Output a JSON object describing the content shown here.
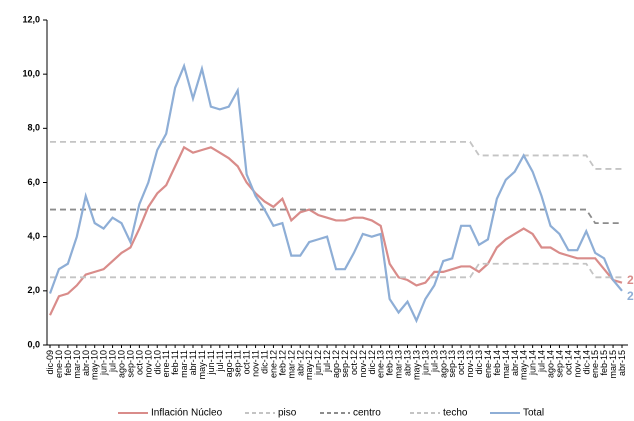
{
  "chart_data": {
    "type": "line",
    "categories": [
      "dic-09",
      "ene-10",
      "feb-10",
      "mar-10",
      "abr-10",
      "may-10",
      "jun-10",
      "jul-10",
      "ago-10",
      "sep-10",
      "oct-10",
      "nov-10",
      "dic-10",
      "ene-11",
      "feb-11",
      "mar-11",
      "abr-11",
      "may-11",
      "jun-11",
      "jul-11",
      "ago-11",
      "sep-11",
      "oct-11",
      "nov-11",
      "dic-11",
      "ene-12",
      "feb-12",
      "mar-12",
      "abr-12",
      "may-12",
      "jun-12",
      "jul-12",
      "ago-12",
      "sep-12",
      "oct-12",
      "nov-12",
      "dic-12",
      "ene-13",
      "feb-13",
      "mar-13",
      "abr-13",
      "may-13",
      "jun-13",
      "jul-13",
      "ago-13",
      "sep-13",
      "oct-13",
      "nov-13",
      "dic-13",
      "ene-14",
      "feb-14",
      "mar-14",
      "abr-14",
      "may-14",
      "jun-14",
      "jul-14",
      "ago-14",
      "sep-14",
      "oct-14",
      "nov-14",
      "dic-14",
      "ene-15",
      "feb-15",
      "mar-15",
      "abr-15"
    ],
    "series": [
      {
        "name": "Inflación Núcleo",
        "color": "#d98c8a",
        "dash": false,
        "values": [
          1.1,
          1.8,
          1.9,
          2.2,
          2.6,
          2.7,
          2.8,
          3.1,
          3.4,
          3.6,
          4.3,
          5.1,
          5.6,
          5.9,
          6.6,
          7.3,
          7.1,
          7.2,
          7.3,
          7.1,
          6.9,
          6.6,
          6.0,
          5.6,
          5.3,
          5.1,
          5.4,
          4.6,
          4.9,
          5.0,
          4.8,
          4.7,
          4.6,
          4.6,
          4.7,
          4.7,
          4.6,
          4.4,
          3.0,
          2.5,
          2.4,
          2.2,
          2.3,
          2.7,
          2.7,
          2.8,
          2.9,
          2.9,
          2.7,
          3.0,
          3.6,
          3.9,
          4.1,
          4.3,
          4.1,
          3.6,
          3.6,
          3.4,
          3.3,
          3.2,
          3.2,
          3.2,
          2.8,
          2.4,
          2.3
        ],
        "value_labels": [
          null,
          null,
          null,
          null,
          null,
          null,
          null,
          null,
          null,
          null,
          null,
          null,
          null,
          null,
          null,
          null,
          null,
          null,
          null,
          null,
          null,
          null,
          null,
          null,
          null,
          null,
          null,
          null,
          null,
          null,
          null,
          null,
          null,
          null,
          null,
          null,
          null,
          null,
          null,
          null,
          null,
          null,
          null,
          null,
          null,
          null,
          null,
          null,
          null,
          null,
          null,
          null,
          null,
          null,
          null,
          null,
          null,
          null,
          null,
          null,
          null,
          null,
          null,
          null,
          "2"
        ]
      },
      {
        "name": "piso",
        "color": "#c4c4c4",
        "dash": true,
        "values": [
          2.5,
          2.5,
          2.5,
          2.5,
          2.5,
          2.5,
          2.5,
          2.5,
          2.5,
          2.5,
          2.5,
          2.5,
          2.5,
          2.5,
          2.5,
          2.5,
          2.5,
          2.5,
          2.5,
          2.5,
          2.5,
          2.5,
          2.5,
          2.5,
          2.5,
          2.5,
          2.5,
          2.5,
          2.5,
          2.5,
          2.5,
          2.5,
          2.5,
          2.5,
          2.5,
          2.5,
          2.5,
          2.5,
          2.5,
          2.5,
          2.5,
          2.5,
          2.5,
          2.5,
          2.5,
          2.5,
          2.5,
          2.5,
          3.0,
          3.0,
          3.0,
          3.0,
          3.0,
          3.0,
          3.0,
          3.0,
          3.0,
          3.0,
          3.0,
          3.0,
          3.0,
          2.5,
          2.5,
          2.5,
          2.5
        ]
      },
      {
        "name": "centro",
        "color": "#8c8c8c",
        "dash": true,
        "values": [
          5,
          5,
          5,
          5,
          5,
          5,
          5,
          5,
          5,
          5,
          5,
          5,
          5,
          5,
          5,
          5,
          5,
          5,
          5,
          5,
          5,
          5,
          5,
          5,
          5,
          5,
          5,
          5,
          5,
          5,
          5,
          5,
          5,
          5,
          5,
          5,
          5,
          5,
          5,
          5,
          5,
          5,
          5,
          5,
          5,
          5,
          5,
          5,
          5,
          5,
          5,
          5,
          5,
          5,
          5,
          5,
          5,
          5,
          5,
          5,
          5,
          4.5,
          4.5,
          4.5,
          4.5
        ]
      },
      {
        "name": "techo",
        "color": "#c4c4c4",
        "dash": true,
        "values": [
          7.5,
          7.5,
          7.5,
          7.5,
          7.5,
          7.5,
          7.5,
          7.5,
          7.5,
          7.5,
          7.5,
          7.5,
          7.5,
          7.5,
          7.5,
          7.5,
          7.5,
          7.5,
          7.5,
          7.5,
          7.5,
          7.5,
          7.5,
          7.5,
          7.5,
          7.5,
          7.5,
          7.5,
          7.5,
          7.5,
          7.5,
          7.5,
          7.5,
          7.5,
          7.5,
          7.5,
          7.5,
          7.5,
          7.5,
          7.5,
          7.5,
          7.5,
          7.5,
          7.5,
          7.5,
          7.5,
          7.5,
          7.5,
          7.0,
          7.0,
          7.0,
          7.0,
          7.0,
          7.0,
          7.0,
          7.0,
          7.0,
          7.0,
          7.0,
          7.0,
          7.0,
          6.5,
          6.5,
          6.5,
          6.5
        ]
      },
      {
        "name": "Total",
        "color": "#8eaed6",
        "dash": false,
        "values": [
          1.9,
          2.8,
          3.0,
          4.0,
          5.5,
          4.5,
          4.3,
          4.7,
          4.5,
          3.8,
          5.2,
          6.0,
          7.2,
          7.8,
          9.5,
          10.3,
          9.1,
          10.2,
          8.8,
          8.7,
          8.8,
          9.4,
          6.3,
          5.5,
          5.0,
          4.4,
          4.5,
          3.3,
          3.3,
          3.8,
          3.9,
          4.0,
          2.8,
          2.8,
          3.4,
          4.1,
          4.0,
          4.1,
          1.7,
          1.2,
          1.6,
          0.9,
          1.7,
          2.2,
          3.1,
          3.2,
          4.4,
          4.4,
          3.7,
          3.9,
          5.4,
          6.1,
          6.4,
          7.0,
          6.4,
          5.5,
          4.4,
          4.1,
          3.5,
          3.5,
          4.2,
          3.4,
          3.2,
          2.4,
          2.0
        ],
        "value_labels": [
          null,
          null,
          null,
          null,
          null,
          null,
          null,
          null,
          null,
          null,
          null,
          null,
          null,
          null,
          null,
          null,
          null,
          null,
          null,
          null,
          null,
          null,
          null,
          null,
          null,
          null,
          null,
          null,
          null,
          null,
          null,
          null,
          null,
          null,
          null,
          null,
          null,
          null,
          null,
          null,
          null,
          null,
          null,
          null,
          null,
          null,
          null,
          null,
          null,
          null,
          null,
          null,
          null,
          null,
          null,
          null,
          null,
          null,
          null,
          null,
          null,
          null,
          null,
          null,
          "2"
        ]
      }
    ],
    "ylim": [
      0,
      12
    ],
    "yticks": [
      {
        "value": 0,
        "label": "0,0"
      },
      {
        "value": 2,
        "label": "2,0"
      },
      {
        "value": 4,
        "label": "4,0"
      },
      {
        "value": 6,
        "label": "6,0"
      },
      {
        "value": 8,
        "label": "8,0"
      },
      {
        "value": 10,
        "label": "10,0"
      },
      {
        "value": 12,
        "label": "12,0"
      }
    ]
  }
}
